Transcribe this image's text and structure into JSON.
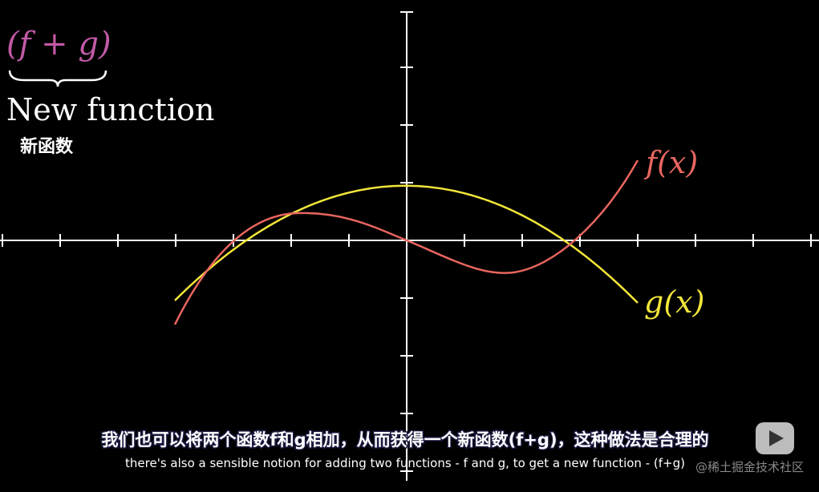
{
  "formula": "(f + g)",
  "caption": "New function",
  "caption_zh": "新函数",
  "curve_labels": {
    "f": "f(x)",
    "g": "g(x)"
  },
  "subtitles": {
    "zh": "我们也可以将两个函数f和g相加，从而获得一个新函数(f+g)，这种做法是合理的",
    "en": "there's also a sensible notion for adding two functions - f and g, to get a new function - (f+g)"
  },
  "watermark": "@稀土掘金技术社区"
}
